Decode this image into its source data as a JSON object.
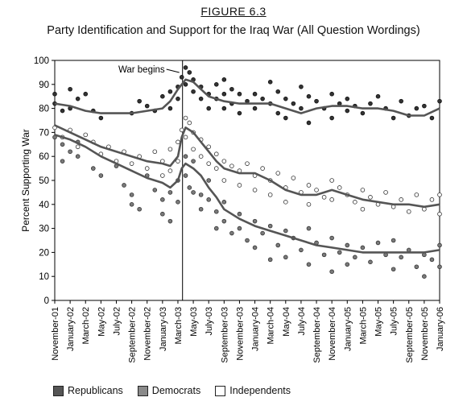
{
  "figure_label": "FIGURE 6.3",
  "title": "Party Identification and Support for the Iraq War (All Question Wordings)",
  "chart_data": {
    "type": "scatter",
    "ylabel": "Percent Supporting War",
    "xlabel": "",
    "ylim": [
      0,
      100
    ],
    "yticks": [
      0,
      10,
      20,
      30,
      40,
      50,
      60,
      70,
      80,
      90,
      100
    ],
    "grid": false,
    "legend_position": "bottom-left",
    "x_tick_labels": [
      "November-01",
      "January-02",
      "March-02",
      "May-02",
      "July-02",
      "September-02",
      "November-02",
      "January-03",
      "March-03",
      "May-03",
      "July-03",
      "September-03",
      "November-03",
      "January-04",
      "March-04",
      "May-04",
      "July-04",
      "September-04",
      "November-04",
      "January-05",
      "March-05",
      "May-05",
      "July-05",
      "September-05",
      "November-05",
      "January-06"
    ],
    "annotation": {
      "text": "War begins",
      "x_month": 16.6
    },
    "series": [
      {
        "name": "Republicans",
        "marker": "filled-dark",
        "trend": [
          [
            0,
            82
          ],
          [
            2,
            81
          ],
          [
            4,
            79
          ],
          [
            6,
            78
          ],
          [
            8,
            78
          ],
          [
            10,
            78
          ],
          [
            12,
            79
          ],
          [
            14,
            80
          ],
          [
            15,
            83
          ],
          [
            16,
            88
          ],
          [
            17,
            92
          ],
          [
            18,
            91
          ],
          [
            19,
            88
          ],
          [
            20,
            85
          ],
          [
            22,
            83
          ],
          [
            24,
            82
          ],
          [
            26,
            82
          ],
          [
            28,
            82
          ],
          [
            30,
            80
          ],
          [
            32,
            78
          ],
          [
            34,
            80
          ],
          [
            36,
            81
          ],
          [
            38,
            81
          ],
          [
            40,
            80
          ],
          [
            42,
            80
          ],
          [
            44,
            79
          ],
          [
            46,
            77
          ],
          [
            48,
            77
          ],
          [
            50,
            80
          ]
        ],
        "points": [
          [
            0,
            86
          ],
          [
            0,
            82
          ],
          [
            1,
            79
          ],
          [
            2,
            88
          ],
          [
            2,
            80
          ],
          [
            3,
            84
          ],
          [
            4,
            86
          ],
          [
            5,
            79
          ],
          [
            6,
            76
          ],
          [
            10,
            78
          ],
          [
            11,
            83
          ],
          [
            12,
            81
          ],
          [
            13,
            79
          ],
          [
            14,
            85
          ],
          [
            15,
            87
          ],
          [
            15,
            80
          ],
          [
            16,
            89
          ],
          [
            16,
            84
          ],
          [
            16.5,
            93
          ],
          [
            17,
            97
          ],
          [
            17,
            90
          ],
          [
            17.5,
            95
          ],
          [
            18,
            92
          ],
          [
            18,
            87
          ],
          [
            19,
            89
          ],
          [
            19,
            84
          ],
          [
            20,
            86
          ],
          [
            20,
            80
          ],
          [
            21,
            90
          ],
          [
            21,
            84
          ],
          [
            22,
            92
          ],
          [
            22,
            86
          ],
          [
            22,
            80
          ],
          [
            23,
            88
          ],
          [
            23,
            82
          ],
          [
            24,
            86
          ],
          [
            24,
            78
          ],
          [
            25,
            83
          ],
          [
            26,
            86
          ],
          [
            26,
            80
          ],
          [
            27,
            84
          ],
          [
            28,
            91
          ],
          [
            28,
            82
          ],
          [
            29,
            87
          ],
          [
            29,
            78
          ],
          [
            30,
            84
          ],
          [
            30,
            76
          ],
          [
            31,
            82
          ],
          [
            32,
            89
          ],
          [
            32,
            80
          ],
          [
            33,
            85
          ],
          [
            33,
            74
          ],
          [
            34,
            83
          ],
          [
            35,
            80
          ],
          [
            36,
            86
          ],
          [
            36,
            76
          ],
          [
            37,
            82
          ],
          [
            38,
            84
          ],
          [
            38,
            79
          ],
          [
            39,
            81
          ],
          [
            40,
            78
          ],
          [
            41,
            82
          ],
          [
            42,
            85
          ],
          [
            43,
            80
          ],
          [
            44,
            76
          ],
          [
            45,
            83
          ],
          [
            46,
            77
          ],
          [
            47,
            80
          ],
          [
            48,
            81
          ],
          [
            49,
            76
          ],
          [
            50,
            83
          ]
        ]
      },
      {
        "name": "Democrats",
        "marker": "filled-gray",
        "trend": [
          [
            0,
            69
          ],
          [
            2,
            67
          ],
          [
            4,
            64
          ],
          [
            6,
            60
          ],
          [
            8,
            57
          ],
          [
            10,
            54
          ],
          [
            12,
            51
          ],
          [
            14,
            49
          ],
          [
            15,
            47
          ],
          [
            16,
            50
          ],
          [
            16.5,
            55
          ],
          [
            17,
            57
          ],
          [
            18,
            55
          ],
          [
            19,
            52
          ],
          [
            20,
            47
          ],
          [
            21,
            43
          ],
          [
            22,
            38
          ],
          [
            24,
            34
          ],
          [
            26,
            31
          ],
          [
            28,
            29
          ],
          [
            30,
            27
          ],
          [
            32,
            25
          ],
          [
            34,
            23
          ],
          [
            36,
            22
          ],
          [
            38,
            21
          ],
          [
            40,
            20
          ],
          [
            42,
            20
          ],
          [
            44,
            20
          ],
          [
            46,
            20
          ],
          [
            48,
            20
          ],
          [
            50,
            21
          ]
        ],
        "points": [
          [
            0,
            68
          ],
          [
            1,
            65
          ],
          [
            1,
            58
          ],
          [
            2,
            62
          ],
          [
            3,
            66
          ],
          [
            3,
            60
          ],
          [
            5,
            55
          ],
          [
            6,
            52
          ],
          [
            8,
            56
          ],
          [
            9,
            48
          ],
          [
            10,
            44
          ],
          [
            10,
            40
          ],
          [
            11,
            38
          ],
          [
            12,
            52
          ],
          [
            13,
            46
          ],
          [
            14,
            42
          ],
          [
            14,
            36
          ],
          [
            15,
            45
          ],
          [
            15,
            33
          ],
          [
            16,
            41
          ],
          [
            16,
            50
          ],
          [
            17,
            60
          ],
          [
            17,
            52
          ],
          [
            17.5,
            47
          ],
          [
            18,
            45
          ],
          [
            18,
            58
          ],
          [
            19,
            44
          ],
          [
            19,
            38
          ],
          [
            20,
            50
          ],
          [
            20,
            42
          ],
          [
            21,
            37
          ],
          [
            21,
            30
          ],
          [
            22,
            41
          ],
          [
            22,
            33
          ],
          [
            23,
            28
          ],
          [
            24,
            36
          ],
          [
            24,
            30
          ],
          [
            25,
            25
          ],
          [
            26,
            33
          ],
          [
            26,
            22
          ],
          [
            27,
            28
          ],
          [
            28,
            31
          ],
          [
            28,
            17
          ],
          [
            29,
            23
          ],
          [
            30,
            29
          ],
          [
            30,
            18
          ],
          [
            31,
            26
          ],
          [
            32,
            21
          ],
          [
            33,
            30
          ],
          [
            33,
            15
          ],
          [
            34,
            24
          ],
          [
            35,
            19
          ],
          [
            36,
            26
          ],
          [
            36,
            12
          ],
          [
            37,
            20
          ],
          [
            38,
            23
          ],
          [
            38,
            15
          ],
          [
            39,
            18
          ],
          [
            40,
            22
          ],
          [
            41,
            16
          ],
          [
            42,
            24
          ],
          [
            43,
            19
          ],
          [
            44,
            25
          ],
          [
            44,
            13
          ],
          [
            45,
            18
          ],
          [
            46,
            21
          ],
          [
            47,
            14
          ],
          [
            48,
            19
          ],
          [
            48,
            10
          ],
          [
            49,
            17
          ],
          [
            50,
            23
          ],
          [
            50,
            14
          ]
        ]
      },
      {
        "name": "Independents",
        "marker": "open",
        "trend": [
          [
            0,
            73
          ],
          [
            2,
            70
          ],
          [
            4,
            67
          ],
          [
            6,
            64
          ],
          [
            8,
            62
          ],
          [
            10,
            60
          ],
          [
            12,
            58
          ],
          [
            14,
            57
          ],
          [
            15,
            56
          ],
          [
            16,
            60
          ],
          [
            16.5,
            68
          ],
          [
            17,
            72
          ],
          [
            18,
            70
          ],
          [
            19,
            66
          ],
          [
            20,
            62
          ],
          [
            21,
            58
          ],
          [
            22,
            55
          ],
          [
            24,
            53
          ],
          [
            26,
            53
          ],
          [
            28,
            50
          ],
          [
            30,
            46
          ],
          [
            32,
            44
          ],
          [
            34,
            44
          ],
          [
            36,
            46
          ],
          [
            38,
            44
          ],
          [
            40,
            42
          ],
          [
            42,
            41
          ],
          [
            44,
            40
          ],
          [
            46,
            40
          ],
          [
            48,
            39
          ],
          [
            50,
            40
          ]
        ],
        "points": [
          [
            0,
            72
          ],
          [
            1,
            68
          ],
          [
            2,
            71
          ],
          [
            3,
            64
          ],
          [
            4,
            69
          ],
          [
            5,
            66
          ],
          [
            6,
            61
          ],
          [
            7,
            64
          ],
          [
            8,
            58
          ],
          [
            9,
            62
          ],
          [
            10,
            57
          ],
          [
            11,
            60
          ],
          [
            12,
            55
          ],
          [
            13,
            62
          ],
          [
            14,
            58
          ],
          [
            14,
            52
          ],
          [
            15,
            63
          ],
          [
            15,
            54
          ],
          [
            16,
            66
          ],
          [
            16,
            58
          ],
          [
            16.5,
            71
          ],
          [
            17,
            76
          ],
          [
            17,
            68
          ],
          [
            17.5,
            74
          ],
          [
            18,
            70
          ],
          [
            18,
            63
          ],
          [
            19,
            67
          ],
          [
            19,
            60
          ],
          [
            20,
            64
          ],
          [
            20,
            57
          ],
          [
            21,
            61
          ],
          [
            21,
            55
          ],
          [
            22,
            58
          ],
          [
            22,
            50
          ],
          [
            23,
            56
          ],
          [
            24,
            54
          ],
          [
            24,
            48
          ],
          [
            25,
            57
          ],
          [
            26,
            52
          ],
          [
            26,
            46
          ],
          [
            27,
            55
          ],
          [
            28,
            50
          ],
          [
            28,
            44
          ],
          [
            29,
            53
          ],
          [
            30,
            47
          ],
          [
            30,
            41
          ],
          [
            31,
            51
          ],
          [
            32,
            45
          ],
          [
            33,
            48
          ],
          [
            33,
            40
          ],
          [
            34,
            46
          ],
          [
            35,
            43
          ],
          [
            36,
            50
          ],
          [
            36,
            42
          ],
          [
            37,
            47
          ],
          [
            38,
            44
          ],
          [
            39,
            41
          ],
          [
            40,
            46
          ],
          [
            40,
            38
          ],
          [
            41,
            43
          ],
          [
            42,
            40
          ],
          [
            43,
            45
          ],
          [
            44,
            39
          ],
          [
            45,
            42
          ],
          [
            46,
            37
          ],
          [
            47,
            44
          ],
          [
            48,
            38
          ],
          [
            49,
            42
          ],
          [
            50,
            36
          ],
          [
            50,
            44
          ]
        ]
      }
    ]
  },
  "legend": {
    "republicans": "Republicans",
    "democrats": "Democrats",
    "independents": "Independents"
  },
  "colors": {
    "republicans": "#333333",
    "democrats": "#7a7a7a",
    "independents_fill": "#ffffff",
    "trend": "#555555",
    "axis": "#000000"
  }
}
